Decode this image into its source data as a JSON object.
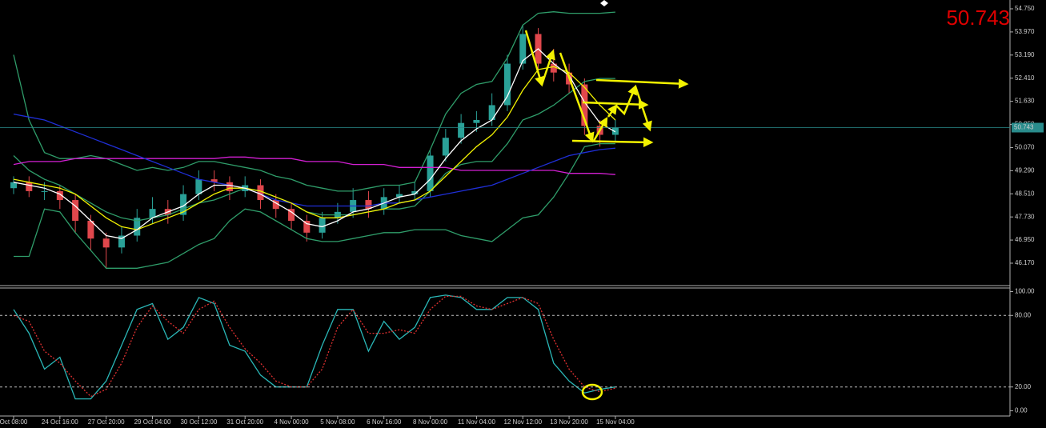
{
  "chart_data": [
    {
      "type": "candlestick",
      "current_price": 50.743,
      "categories": [
        "Oct 08:00",
        null,
        null,
        "24 Oct 16:00",
        null,
        null,
        "27 Oct 20:00",
        null,
        null,
        "29 Oct 04:00",
        null,
        null,
        "30 Oct 12:00",
        null,
        null,
        "31 Oct 20:00",
        null,
        null,
        "4 Nov 00:00",
        null,
        null,
        "5 Nov 08:00",
        null,
        null,
        "6 Nov 16:00",
        null,
        null,
        "8 Nov 00:00",
        null,
        null,
        "11 Nov 04:00",
        null,
        null,
        "12 Nov 12:00",
        null,
        null,
        "13 Nov 20:00",
        null,
        null,
        "15 Nov 04:00"
      ],
      "open": [
        48.7,
        48.9,
        48.6,
        48.6,
        48.3,
        47.6,
        47.0,
        46.7,
        47.1,
        47.7,
        48.0,
        47.8,
        48.5,
        49.0,
        48.9,
        48.6,
        48.8,
        48.3,
        48.0,
        47.6,
        47.2,
        47.7,
        47.9,
        48.3,
        48.0,
        48.4,
        48.5,
        48.6,
        49.8,
        50.4,
        50.9,
        51.0,
        51.5,
        52.9,
        53.9,
        52.9,
        52.6,
        52.2,
        50.8,
        50.5
      ],
      "high": [
        49.1,
        49.1,
        48.9,
        48.8,
        48.5,
        47.8,
        47.2,
        47.4,
        48.0,
        48.4,
        48.3,
        48.8,
        49.3,
        49.3,
        49.1,
        49.1,
        49.0,
        48.5,
        48.2,
        47.8,
        47.9,
        48.2,
        48.7,
        48.6,
        48.7,
        48.8,
        48.9,
        50.0,
        50.7,
        51.2,
        51.3,
        51.9,
        53.2,
        54.2,
        54.1,
        53.4,
        52.9,
        52.4,
        51.0,
        51.0
      ],
      "low": [
        48.5,
        48.4,
        48.3,
        48.0,
        47.2,
        46.6,
        46.0,
        46.5,
        46.9,
        47.5,
        47.5,
        47.6,
        48.3,
        48.6,
        48.3,
        48.4,
        48.0,
        47.7,
        47.3,
        46.9,
        47.0,
        47.5,
        47.7,
        47.7,
        47.8,
        48.2,
        48.3,
        48.4,
        49.6,
        50.2,
        50.6,
        50.8,
        51.3,
        52.7,
        52.6,
        52.3,
        51.9,
        50.5,
        50.1,
        50.3
      ],
      "close": [
        48.9,
        48.6,
        48.6,
        48.3,
        47.6,
        47.0,
        46.7,
        47.1,
        47.7,
        48.0,
        47.8,
        48.5,
        49.0,
        48.9,
        48.6,
        48.8,
        48.3,
        48.0,
        47.6,
        47.2,
        47.7,
        47.9,
        48.3,
        48.0,
        48.4,
        48.5,
        48.6,
        49.8,
        50.4,
        50.9,
        51.0,
        51.5,
        52.9,
        53.9,
        52.9,
        52.6,
        52.2,
        50.8,
        50.5,
        50.743
      ],
      "up_color": "#2aa198",
      "down_color": "#e0474c",
      "series": [
        {
          "color": "#2f9d6a",
          "values": [
            53.2,
            51.0,
            49.9,
            49.7,
            49.7,
            49.8,
            49.7,
            49.5,
            49.3,
            49.4,
            49.3,
            49.4,
            49.6,
            49.6,
            49.5,
            49.4,
            49.3,
            49.1,
            49.0,
            48.8,
            48.7,
            48.6,
            48.6,
            48.7,
            48.8,
            48.8,
            48.9,
            50.0,
            51.2,
            51.9,
            52.2,
            52.3,
            53.1,
            54.2,
            54.6,
            54.65,
            54.6,
            54.6,
            54.6,
            54.64
          ]
        },
        {
          "color": "#2f9d6a",
          "values": [
            49.8,
            49.3,
            49.0,
            48.8,
            48.5,
            48.2,
            47.9,
            47.7,
            47.6,
            47.7,
            47.8,
            48.0,
            48.2,
            48.3,
            48.5,
            48.7,
            48.6,
            48.4,
            48.2,
            47.9,
            47.8,
            47.8,
            47.8,
            47.9,
            48.0,
            48.0,
            48.1,
            48.6,
            49.2,
            49.5,
            49.6,
            49.6,
            50.2,
            51.0,
            51.2,
            51.5,
            51.9,
            52.3,
            52.4,
            52.4
          ]
        },
        {
          "color": "#2f9d6a",
          "values": [
            46.4,
            46.4,
            48.0,
            47.9,
            47.2,
            46.6,
            46.0,
            46.0,
            46.0,
            46.1,
            46.2,
            46.5,
            46.8,
            47.0,
            47.6,
            48.0,
            47.9,
            47.6,
            47.3,
            47.0,
            46.9,
            46.9,
            47.0,
            47.1,
            47.2,
            47.2,
            47.3,
            47.3,
            47.3,
            47.1,
            47.0,
            46.9,
            47.3,
            47.7,
            47.8,
            48.4,
            49.2,
            50.1,
            50.2,
            50.2
          ]
        },
        {
          "color": "#d21fd2",
          "values": [
            49.5,
            49.6,
            49.6,
            49.6,
            49.7,
            49.7,
            49.7,
            49.7,
            49.7,
            49.7,
            49.7,
            49.7,
            49.7,
            49.7,
            49.75,
            49.75,
            49.7,
            49.7,
            49.7,
            49.6,
            49.6,
            49.6,
            49.5,
            49.5,
            49.5,
            49.4,
            49.4,
            49.4,
            49.4,
            49.3,
            49.3,
            49.3,
            49.3,
            49.3,
            49.3,
            49.3,
            49.2,
            49.2,
            49.2,
            49.16
          ]
        },
        {
          "color": "#1f2fd6",
          "values": [
            51.2,
            51.1,
            51.0,
            50.8,
            50.6,
            50.4,
            50.2,
            50.0,
            49.8,
            49.6,
            49.4,
            49.2,
            49.0,
            48.9,
            48.8,
            48.7,
            48.5,
            48.3,
            48.2,
            48.1,
            48.1,
            48.1,
            48.1,
            48.1,
            48.2,
            48.2,
            48.3,
            48.4,
            48.5,
            48.6,
            48.7,
            48.8,
            49.0,
            49.2,
            49.4,
            49.6,
            49.8,
            49.9,
            50.0,
            50.05
          ]
        },
        {
          "color": "#f2f200",
          "values": [
            49.0,
            48.9,
            48.8,
            48.7,
            48.5,
            48.1,
            47.7,
            47.4,
            47.3,
            47.5,
            47.7,
            47.9,
            48.2,
            48.5,
            48.7,
            48.7,
            48.6,
            48.4,
            48.2,
            47.9,
            47.7,
            47.7,
            47.8,
            47.9,
            48.0,
            48.2,
            48.3,
            48.6,
            49.1,
            49.6,
            50.1,
            50.5,
            51.1,
            52.0,
            52.7,
            52.8,
            52.6,
            52.1,
            51.5,
            51.0
          ]
        },
        {
          "color": "#ffffff",
          "values": [
            48.9,
            48.8,
            48.7,
            48.5,
            48.1,
            47.6,
            47.1,
            47.0,
            47.3,
            47.7,
            47.9,
            48.1,
            48.5,
            48.8,
            48.8,
            48.7,
            48.5,
            48.2,
            47.9,
            47.5,
            47.4,
            47.6,
            47.9,
            48.0,
            48.2,
            48.4,
            48.5,
            49.0,
            49.7,
            50.3,
            50.7,
            51.0,
            51.8,
            53.0,
            53.4,
            52.9,
            52.5,
            51.6,
            50.9,
            50.6
          ]
        }
      ],
      "ylim": [
        45.414,
        55.047
      ],
      "yticks": [
        {
          "value": 54.75,
          "label": "54.750"
        },
        {
          "value": 53.97,
          "label": "53.970"
        },
        {
          "value": 53.19,
          "label": "53.190"
        },
        {
          "value": 52.41,
          "label": "52.410"
        },
        {
          "value": 51.63,
          "label": "51.630"
        },
        {
          "value": 50.85,
          "label": "50.850"
        },
        {
          "value": 50.07,
          "label": "50.070"
        },
        {
          "value": 49.29,
          "label": "49.290"
        },
        {
          "value": 48.51,
          "label": "48.510"
        },
        {
          "value": 47.73,
          "label": "47.730"
        },
        {
          "value": 46.95,
          "label": "46.950"
        },
        {
          "value": 46.17,
          "label": "46.170"
        }
      ]
    },
    {
      "type": "line",
      "series": [
        {
          "color": "#2ab7b7",
          "values": [
            85,
            65,
            35,
            45,
            10,
            10,
            25,
            55,
            85,
            90,
            60,
            70,
            95,
            90,
            55,
            50,
            30,
            20,
            20,
            20,
            55,
            85,
            85,
            50,
            75,
            60,
            70,
            95,
            97,
            95,
            85,
            85,
            95,
            95,
            85,
            40,
            25,
            15,
            18,
            20
          ]
        },
        {
          "color": "#e03030",
          "values": [
            80,
            75,
            50,
            40,
            25,
            12,
            18,
            40,
            70,
            88,
            75,
            65,
            85,
            92,
            70,
            52,
            40,
            25,
            20,
            20,
            35,
            70,
            85,
            65,
            65,
            68,
            65,
            85,
            96,
            96,
            88,
            85,
            90,
            95,
            90,
            60,
            35,
            20,
            16,
            19
          ]
        }
      ],
      "levels": [
        80,
        20
      ],
      "ylim": [
        -3,
        103
      ],
      "yticks": [
        {
          "value": 100,
          "label": "100.00"
        },
        {
          "value": 80,
          "label": "80.00"
        },
        {
          "value": 20,
          "label": "20.00"
        },
        {
          "value": 0,
          "label": "0.00"
        }
      ]
    }
  ]
}
